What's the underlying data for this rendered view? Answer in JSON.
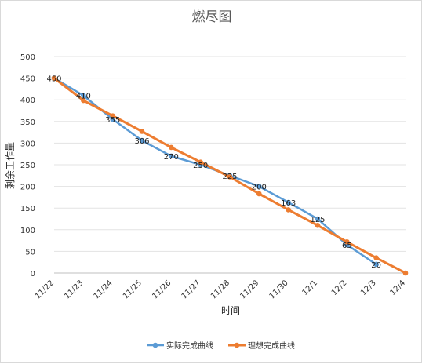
{
  "chart_data": {
    "type": "line",
    "title": "燃尽图",
    "xlabel": "时间",
    "ylabel": "剩余工作量",
    "categories": [
      "11/22",
      "11/23",
      "11/24",
      "11/25",
      "11/26",
      "11/27",
      "11/28",
      "11/29",
      "11/30",
      "12/1",
      "12/2",
      "12/3",
      "12/4"
    ],
    "ylim": [
      0,
      500
    ],
    "yticks": [
      0,
      50,
      100,
      150,
      200,
      250,
      300,
      350,
      400,
      450,
      500
    ],
    "grid": true,
    "legend_position": "bottom",
    "series": [
      {
        "name": "实际完成曲线",
        "color": "#5B9BD5",
        "values": [
          450,
          410,
          355,
          306,
          270,
          250,
          225,
          200,
          163,
          125,
          65,
          20,
          null
        ],
        "data_labels": true
      },
      {
        "name": "理想完成曲线",
        "color": "#ED7D31",
        "values": [
          450,
          398.5,
          363,
          327,
          290,
          256,
          222,
          183,
          146,
          110,
          72,
          35,
          0
        ],
        "data_labels": false
      }
    ]
  }
}
